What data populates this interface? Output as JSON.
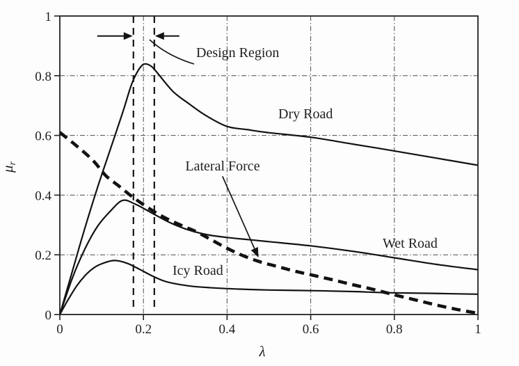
{
  "figure": {
    "background": "#fdfdfd",
    "ink": "#1a1a1a",
    "description": "Tire friction coefficient versus wheel slip for different road conditions"
  },
  "chart_data": {
    "type": "line",
    "title": "",
    "xlabel": "λ",
    "ylabel": "μ",
    "ylabel_sub": "r",
    "xlim": [
      0,
      1
    ],
    "ylim": [
      0,
      1
    ],
    "x_ticks": [
      "0",
      "0.2",
      "0.4",
      "0.6",
      "0.8",
      "1"
    ],
    "y_ticks": [
      "0",
      "0.2",
      "0.4",
      "0.6",
      "0.8",
      "1"
    ],
    "grid": {
      "on": true,
      "style": "dash-dot",
      "positions": [
        0.2,
        0.4,
        0.6,
        0.8
      ]
    },
    "legend": "none (curves labeled inline)",
    "series": [
      {
        "name": "Dry Road",
        "line": "solid",
        "peak": {
          "x": 0.2,
          "y": 0.84
        },
        "points": [
          [
            0,
            0
          ],
          [
            0.03,
            0.145
          ],
          [
            0.06,
            0.29
          ],
          [
            0.09,
            0.425
          ],
          [
            0.12,
            0.55
          ],
          [
            0.15,
            0.675
          ],
          [
            0.17,
            0.765
          ],
          [
            0.185,
            0.812
          ],
          [
            0.2,
            0.838
          ],
          [
            0.215,
            0.835
          ],
          [
            0.23,
            0.815
          ],
          [
            0.27,
            0.748
          ],
          [
            0.31,
            0.705
          ],
          [
            0.35,
            0.666
          ],
          [
            0.4,
            0.63
          ],
          [
            0.45,
            0.619
          ],
          [
            0.5,
            0.609
          ],
          [
            0.6,
            0.594
          ],
          [
            0.7,
            0.571
          ],
          [
            0.8,
            0.548
          ],
          [
            0.9,
            0.524
          ],
          [
            1,
            0.5
          ]
        ]
      },
      {
        "name": "Wet Road",
        "line": "solid",
        "peak": {
          "x": 0.15,
          "y": 0.38
        },
        "points": [
          [
            0,
            0
          ],
          [
            0.03,
            0.122
          ],
          [
            0.06,
            0.22
          ],
          [
            0.09,
            0.295
          ],
          [
            0.12,
            0.345
          ],
          [
            0.15,
            0.382
          ],
          [
            0.18,
            0.37
          ],
          [
            0.22,
            0.34
          ],
          [
            0.26,
            0.31
          ],
          [
            0.3,
            0.287
          ],
          [
            0.35,
            0.268
          ],
          [
            0.4,
            0.258
          ],
          [
            0.45,
            0.251
          ],
          [
            0.5,
            0.244
          ],
          [
            0.6,
            0.23
          ],
          [
            0.7,
            0.212
          ],
          [
            0.8,
            0.19
          ],
          [
            0.9,
            0.168
          ],
          [
            1,
            0.15
          ]
        ]
      },
      {
        "name": "Icy Road",
        "line": "solid",
        "peak": {
          "x": 0.13,
          "y": 0.18
        },
        "points": [
          [
            0,
            0
          ],
          [
            0.02,
            0.05
          ],
          [
            0.04,
            0.095
          ],
          [
            0.06,
            0.13
          ],
          [
            0.08,
            0.155
          ],
          [
            0.1,
            0.17
          ],
          [
            0.13,
            0.181
          ],
          [
            0.16,
            0.172
          ],
          [
            0.19,
            0.152
          ],
          [
            0.22,
            0.13
          ],
          [
            0.25,
            0.112
          ],
          [
            0.28,
            0.102
          ],
          [
            0.32,
            0.094
          ],
          [
            0.37,
            0.089
          ],
          [
            0.43,
            0.085
          ],
          [
            0.5,
            0.082
          ],
          [
            0.6,
            0.08
          ],
          [
            0.7,
            0.077
          ],
          [
            0.78,
            0.073
          ],
          [
            0.88,
            0.071
          ],
          [
            1,
            0.068
          ]
        ]
      },
      {
        "name": "Lateral Force",
        "line": "bold-dashed",
        "points": [
          [
            0,
            0.61
          ],
          [
            0.04,
            0.565
          ],
          [
            0.08,
            0.515
          ],
          [
            0.11,
            0.465
          ],
          [
            0.14,
            0.432
          ],
          [
            0.17,
            0.398
          ],
          [
            0.2,
            0.368
          ],
          [
            0.23,
            0.341
          ],
          [
            0.26,
            0.318
          ],
          [
            0.3,
            0.293
          ],
          [
            0.33,
            0.275
          ],
          [
            0.36,
            0.252
          ],
          [
            0.4,
            0.222
          ],
          [
            0.44,
            0.196
          ],
          [
            0.48,
            0.176
          ],
          [
            0.52,
            0.161
          ],
          [
            0.56,
            0.146
          ],
          [
            0.6,
            0.133
          ],
          [
            0.65,
            0.117
          ],
          [
            0.7,
            0.1
          ],
          [
            0.75,
            0.084
          ],
          [
            0.8,
            0.066
          ],
          [
            0.85,
            0.049
          ],
          [
            0.9,
            0.032
          ],
          [
            0.95,
            0.017
          ],
          [
            1,
            0.004
          ]
        ]
      }
    ],
    "annotations": {
      "design_region": {
        "label": "Design Region",
        "lambda_lines": [
          0.176,
          0.226
        ],
        "arrow_mu": 0.933
      },
      "lateral_force_arrow": {
        "from": [
          0.389,
          0.463
        ],
        "to": [
          0.475,
          0.191
        ]
      }
    }
  }
}
